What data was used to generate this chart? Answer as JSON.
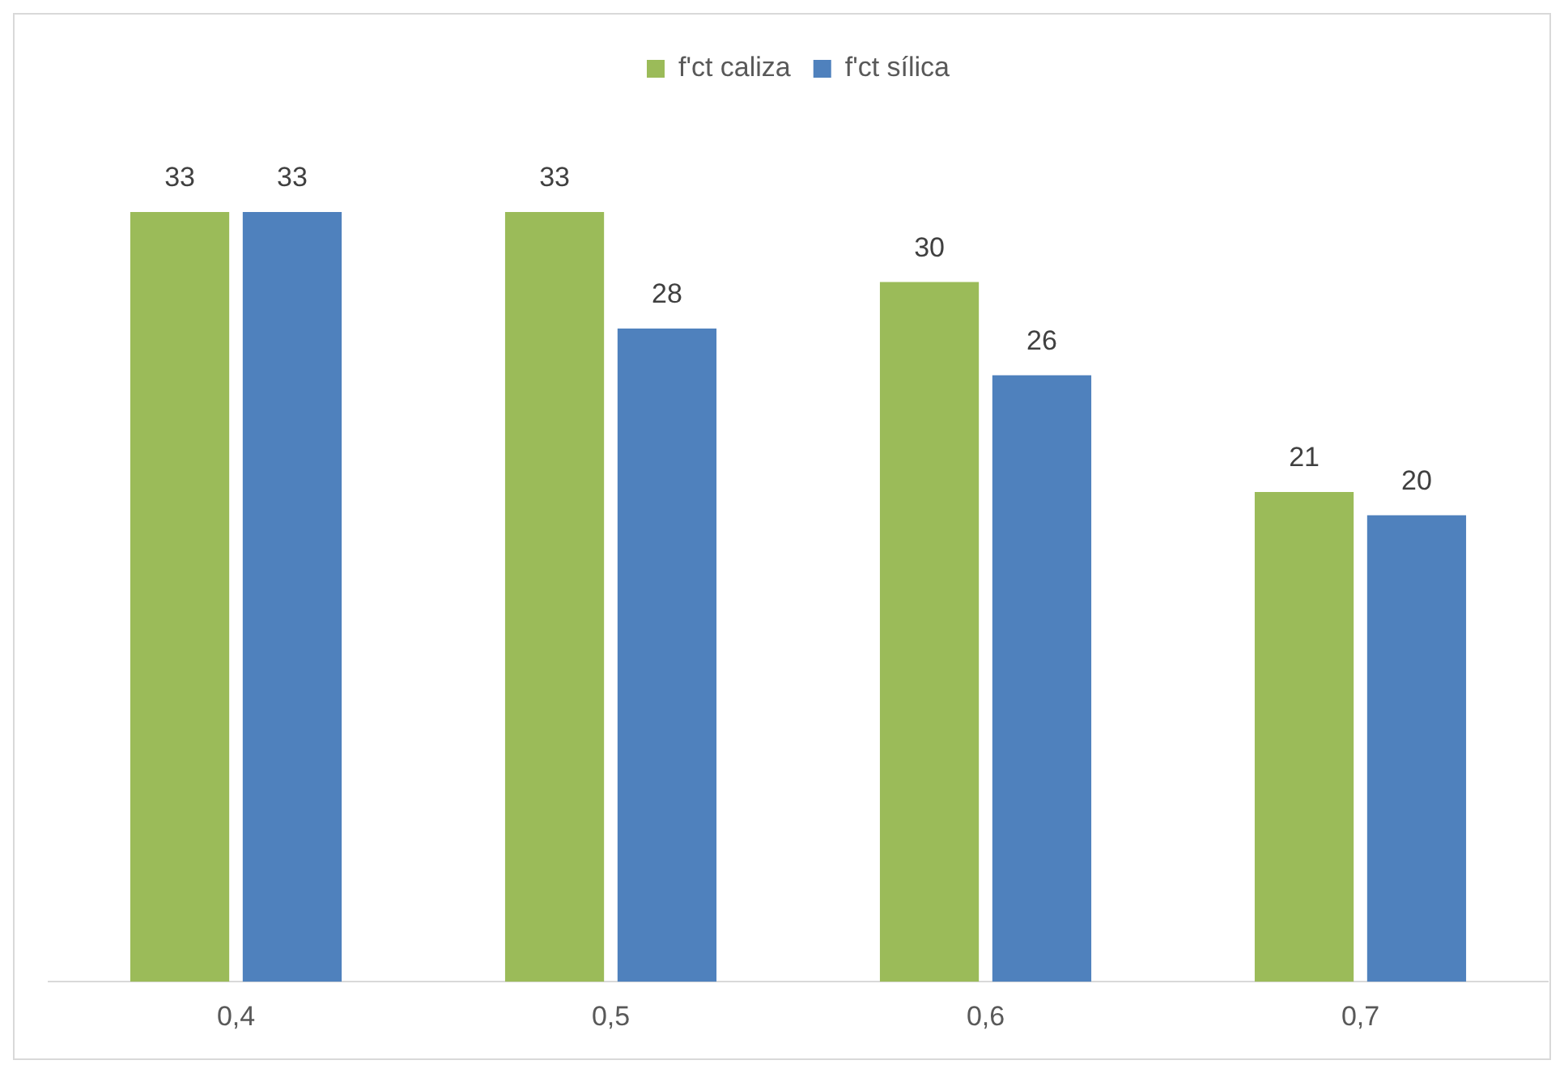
{
  "chart_data": {
    "type": "bar",
    "categories": [
      "0,4",
      "0,5",
      "0,6",
      "0,7"
    ],
    "series": [
      {
        "name": "f'ct caliza",
        "color": "#9bbb59",
        "values": [
          33,
          33,
          30,
          21
        ]
      },
      {
        "name": "f'ct sílica",
        "color": "#4f81bd",
        "values": [
          33,
          28,
          26,
          20
        ]
      }
    ],
    "data_labels": true,
    "legend": "top",
    "grid": false
  }
}
